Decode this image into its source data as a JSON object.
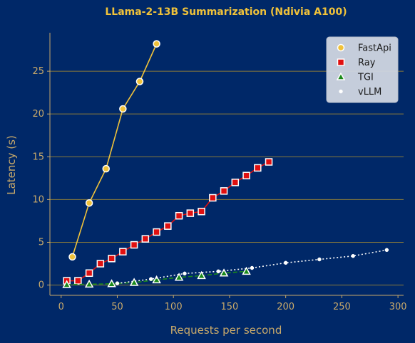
{
  "chart_data": {
    "type": "line",
    "title": "LLama-2-13B Summarization (Ndivia A100)",
    "xlabel": "Requests per second",
    "ylabel": "Latency (s)",
    "xlim": [
      -10,
      305
    ],
    "ylim": [
      -1.2,
      29.5
    ],
    "xticks": [
      0,
      50,
      100,
      150,
      200,
      250,
      300
    ],
    "yticks": [
      0,
      5,
      10,
      15,
      20,
      25
    ],
    "grid": "horizontal",
    "legend_position": "top-right",
    "colors": {
      "background": "#002868",
      "grid": "#8a7a3a",
      "axis": "#c8a96a",
      "legend_bg": "#d0d6e2"
    },
    "series": [
      {
        "name": "FastApi",
        "marker": "circle",
        "line_style": "solid",
        "line_color": "#f0c23a",
        "marker_fill": "#f0c23a",
        "marker_stroke": "#ffffff",
        "x": [
          10,
          25,
          40,
          55,
          70,
          85
        ],
        "y": [
          3.3,
          9.6,
          13.6,
          20.6,
          23.8,
          28.2
        ]
      },
      {
        "name": "Ray",
        "marker": "square",
        "line_style": "solid",
        "line_color": "#e01010",
        "marker_fill": "#e01010",
        "marker_stroke": "#ffffff",
        "x": [
          5,
          15,
          25,
          35,
          45,
          55,
          65,
          75,
          85,
          95,
          105,
          115,
          125,
          135,
          145,
          155,
          165,
          175,
          185
        ],
        "y": [
          0.5,
          0.5,
          1.4,
          2.5,
          3.1,
          3.9,
          4.7,
          5.4,
          6.2,
          6.9,
          8.1,
          8.4,
          8.6,
          10.2,
          11.0,
          12.0,
          12.8,
          13.7,
          14.4
        ]
      },
      {
        "name": "TGI",
        "marker": "triangle",
        "line_style": "dashed",
        "line_color": "#1a8a1a",
        "marker_fill": "#1a8a1a",
        "marker_stroke": "#ffffff",
        "x": [
          5,
          25,
          45,
          65,
          85,
          105,
          125,
          145,
          165
        ],
        "y": [
          0.05,
          0.1,
          0.15,
          0.3,
          0.6,
          0.9,
          1.1,
          1.4,
          1.6
        ]
      },
      {
        "name": "vLLM",
        "marker": "circle-small",
        "line_style": "dotted",
        "line_color": "#ffffff",
        "marker_fill": "#ffffff",
        "marker_stroke": "#ffffff",
        "x": [
          50,
          80,
          110,
          140,
          170,
          200,
          230,
          260,
          290
        ],
        "y": [
          0.2,
          0.7,
          1.35,
          1.6,
          2.0,
          2.6,
          3.0,
          3.4,
          4.1
        ]
      }
    ]
  }
}
